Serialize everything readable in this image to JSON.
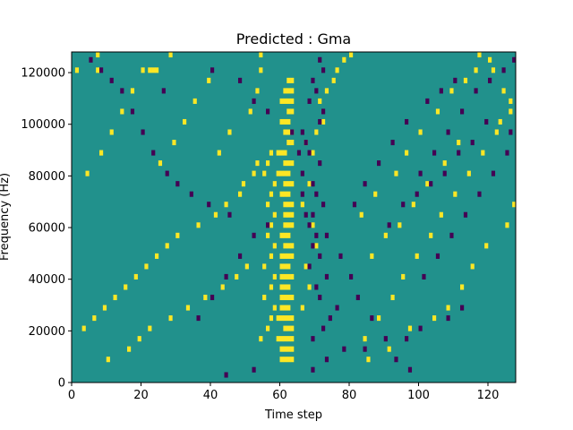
{
  "chart_data": {
    "type": "heatmap",
    "title": "Predicted : Gma",
    "xlabel": "Time step",
    "ylabel": "Frequency (Hz)",
    "xlim": [
      0,
      128
    ],
    "ylim": [
      0,
      128000
    ],
    "x_ticks": [
      0,
      20,
      40,
      60,
      80,
      100,
      120
    ],
    "y_ticks": [
      0,
      20000,
      40000,
      60000,
      80000,
      100000,
      120000
    ],
    "x_tick_labels": [
      "0",
      "20",
      "40",
      "60",
      "80",
      "100",
      "120"
    ],
    "y_tick_labels": [
      "0",
      "20000",
      "40000",
      "60000",
      "80000",
      "100000",
      "120000"
    ],
    "n_time_steps": 128,
    "n_frequency_bins": 64,
    "colormap": "viridis",
    "colors": {
      "background": "#21918c",
      "high": "#fde725",
      "low": "#440154"
    },
    "value_levels": [
      -1,
      0,
      1
    ],
    "background_value": 0,
    "high_cells": [
      [
        7,
        63
      ],
      [
        28,
        63
      ],
      [
        54,
        63
      ],
      [
        1,
        60
      ],
      [
        7,
        60
      ],
      [
        20,
        60
      ],
      [
        22,
        60
      ],
      [
        23,
        60
      ],
      [
        24,
        60
      ],
      [
        54,
        60
      ],
      [
        60,
        4
      ],
      [
        61,
        4
      ],
      [
        62,
        4
      ],
      [
        63,
        4
      ],
      [
        60,
        6
      ],
      [
        61,
        6
      ],
      [
        62,
        6
      ],
      [
        63,
        6
      ],
      [
        59,
        8
      ],
      [
        60,
        8
      ],
      [
        61,
        8
      ],
      [
        62,
        8
      ],
      [
        63,
        8
      ],
      [
        61,
        10
      ],
      [
        62,
        10
      ],
      [
        63,
        10
      ],
      [
        59,
        12
      ],
      [
        60,
        12
      ],
      [
        61,
        12
      ],
      [
        62,
        12
      ],
      [
        63,
        12
      ],
      [
        60,
        14
      ],
      [
        61,
        14
      ],
      [
        62,
        14
      ],
      [
        60,
        16
      ],
      [
        61,
        16
      ],
      [
        62,
        16
      ],
      [
        63,
        16
      ],
      [
        60,
        18
      ],
      [
        61,
        18
      ],
      [
        62,
        18
      ],
      [
        60,
        20
      ],
      [
        61,
        20
      ],
      [
        62,
        20
      ],
      [
        63,
        20
      ],
      [
        60,
        22
      ],
      [
        61,
        22
      ],
      [
        62,
        22
      ],
      [
        60,
        24
      ],
      [
        61,
        24
      ],
      [
        62,
        24
      ],
      [
        63,
        24
      ],
      [
        61,
        26
      ],
      [
        62,
        26
      ],
      [
        63,
        26
      ],
      [
        60,
        28
      ],
      [
        61,
        28
      ],
      [
        62,
        28
      ],
      [
        61,
        30
      ],
      [
        62,
        30
      ],
      [
        63,
        30
      ],
      [
        61,
        32
      ],
      [
        62,
        32
      ],
      [
        63,
        32
      ],
      [
        61,
        34
      ],
      [
        62,
        34
      ],
      [
        63,
        34
      ],
      [
        60,
        36
      ],
      [
        61,
        36
      ],
      [
        62,
        36
      ],
      [
        61,
        38
      ],
      [
        62,
        38
      ],
      [
        63,
        38
      ],
      [
        59,
        40
      ],
      [
        60,
        40
      ],
      [
        61,
        40
      ],
      [
        62,
        40
      ],
      [
        61,
        42
      ],
      [
        62,
        42
      ],
      [
        63,
        42
      ],
      [
        59,
        44
      ],
      [
        60,
        44
      ],
      [
        61,
        44
      ],
      [
        62,
        46
      ],
      [
        63,
        46
      ],
      [
        61,
        48
      ],
      [
        62,
        48
      ],
      [
        63,
        48
      ],
      [
        60,
        50
      ],
      [
        61,
        50
      ],
      [
        62,
        50
      ],
      [
        62,
        52
      ],
      [
        63,
        52
      ],
      [
        60,
        54
      ],
      [
        61,
        54
      ],
      [
        62,
        54
      ],
      [
        63,
        54
      ],
      [
        61,
        56
      ],
      [
        62,
        56
      ],
      [
        63,
        56
      ],
      [
        62,
        58
      ],
      [
        63,
        58
      ],
      [
        54,
        8
      ],
      [
        56,
        10
      ],
      [
        57,
        12
      ],
      [
        58,
        14
      ],
      [
        55,
        16
      ],
      [
        57,
        18
      ],
      [
        58,
        20
      ],
      [
        55,
        22
      ],
      [
        57,
        24
      ],
      [
        58,
        26
      ],
      [
        56,
        28
      ],
      [
        57,
        30
      ],
      [
        58,
        32
      ],
      [
        56,
        34
      ],
      [
        57,
        36
      ],
      [
        58,
        38
      ],
      [
        55,
        40
      ],
      [
        56,
        42
      ],
      [
        57,
        44
      ],
      [
        10,
        4
      ],
      [
        16,
        6
      ],
      [
        19,
        8
      ],
      [
        22,
        10
      ],
      [
        28,
        12
      ],
      [
        33,
        14
      ],
      [
        38,
        16
      ],
      [
        43,
        18
      ],
      [
        47,
        20
      ],
      [
        50,
        22
      ],
      [
        3,
        10
      ],
      [
        6,
        12
      ],
      [
        9,
        14
      ],
      [
        12,
        16
      ],
      [
        15,
        18
      ],
      [
        18,
        20
      ],
      [
        21,
        22
      ],
      [
        24,
        24
      ],
      [
        27,
        26
      ],
      [
        30,
        28
      ],
      [
        36,
        30
      ],
      [
        41,
        32
      ],
      [
        44,
        34
      ],
      [
        48,
        36
      ],
      [
        49,
        38
      ],
      [
        52,
        40
      ],
      [
        53,
        42
      ],
      [
        66,
        14
      ],
      [
        68,
        18
      ],
      [
        67,
        22
      ],
      [
        70,
        26
      ],
      [
        69,
        30
      ],
      [
        66,
        34
      ],
      [
        68,
        38
      ],
      [
        69,
        44
      ],
      [
        67,
        46
      ],
      [
        70,
        48
      ],
      [
        72,
        50
      ],
      [
        71,
        54
      ],
      [
        73,
        56
      ],
      [
        75,
        58
      ],
      [
        76,
        60
      ],
      [
        78,
        62
      ],
      [
        80,
        63
      ],
      [
        84,
        8
      ],
      [
        88,
        12
      ],
      [
        92,
        16
      ],
      [
        95,
        20
      ],
      [
        99,
        24
      ],
      [
        103,
        28
      ],
      [
        106,
        32
      ],
      [
        110,
        36
      ],
      [
        114,
        40
      ],
      [
        118,
        44
      ],
      [
        122,
        48
      ],
      [
        126,
        52
      ],
      [
        124,
        56
      ],
      [
        121,
        60
      ],
      [
        117,
        63
      ],
      [
        85,
        4
      ],
      [
        91,
        6
      ],
      [
        97,
        10
      ],
      [
        104,
        12
      ],
      [
        108,
        14
      ],
      [
        112,
        18
      ],
      [
        115,
        22
      ],
      [
        119,
        26
      ],
      [
        125,
        30
      ],
      [
        127,
        34
      ],
      [
        83,
        32
      ],
      [
        87,
        36
      ],
      [
        93,
        40
      ],
      [
        96,
        44
      ],
      [
        100,
        48
      ],
      [
        105,
        52
      ],
      [
        109,
        56
      ],
      [
        113,
        58
      ],
      [
        116,
        60
      ],
      [
        120,
        62
      ],
      [
        86,
        24
      ],
      [
        90,
        28
      ],
      [
        94,
        30
      ],
      [
        98,
        34
      ],
      [
        102,
        38
      ],
      [
        107,
        42
      ],
      [
        111,
        46
      ],
      [
        123,
        50
      ],
      [
        126,
        54
      ],
      [
        4,
        40
      ],
      [
        8,
        44
      ],
      [
        11,
        48
      ],
      [
        14,
        52
      ],
      [
        17,
        56
      ],
      [
        25,
        42
      ],
      [
        29,
        46
      ],
      [
        32,
        50
      ],
      [
        35,
        54
      ],
      [
        39,
        58
      ],
      [
        42,
        44
      ],
      [
        45,
        48
      ],
      [
        51,
        52
      ],
      [
        53,
        56
      ]
    ],
    "low_cells": [
      [
        44,
        1
      ],
      [
        52,
        2
      ],
      [
        69,
        2
      ],
      [
        73,
        4
      ],
      [
        78,
        6
      ],
      [
        84,
        6
      ],
      [
        96,
        8
      ],
      [
        100,
        10
      ],
      [
        108,
        12
      ],
      [
        112,
        14
      ],
      [
        69,
        8
      ],
      [
        72,
        10
      ],
      [
        74,
        12
      ],
      [
        76,
        14
      ],
      [
        71,
        16
      ],
      [
        70,
        18
      ],
      [
        73,
        20
      ],
      [
        68,
        22
      ],
      [
        71,
        24
      ],
      [
        69,
        26
      ],
      [
        70,
        28
      ],
      [
        68,
        30
      ],
      [
        67,
        32
      ],
      [
        72,
        34
      ],
      [
        70,
        36
      ],
      [
        69,
        38
      ],
      [
        66,
        40
      ],
      [
        71,
        42
      ],
      [
        68,
        44
      ],
      [
        67,
        46
      ],
      [
        66,
        48
      ],
      [
        71,
        50
      ],
      [
        72,
        52
      ],
      [
        68,
        54
      ],
      [
        70,
        56
      ],
      [
        69,
        58
      ],
      [
        72,
        60
      ],
      [
        71,
        62
      ],
      [
        26,
        56
      ],
      [
        40,
        60
      ],
      [
        48,
        58
      ],
      [
        52,
        54
      ],
      [
        56,
        52
      ],
      [
        63,
        48
      ],
      [
        65,
        44
      ],
      [
        66,
        36
      ],
      [
        69,
        32
      ],
      [
        73,
        28
      ],
      [
        77,
        24
      ],
      [
        80,
        20
      ],
      [
        82,
        16
      ],
      [
        86,
        12
      ],
      [
        90,
        8
      ],
      [
        93,
        4
      ],
      [
        97,
        2
      ],
      [
        36,
        12
      ],
      [
        40,
        16
      ],
      [
        44,
        20
      ],
      [
        48,
        24
      ],
      [
        52,
        28
      ],
      [
        56,
        30
      ],
      [
        45,
        32
      ],
      [
        39,
        34
      ],
      [
        34,
        36
      ],
      [
        30,
        38
      ],
      [
        27,
        40
      ],
      [
        23,
        44
      ],
      [
        20,
        48
      ],
      [
        17,
        52
      ],
      [
        14,
        56
      ],
      [
        11,
        58
      ],
      [
        8,
        60
      ],
      [
        5,
        62
      ],
      [
        100,
        40
      ],
      [
        104,
        44
      ],
      [
        108,
        48
      ],
      [
        112,
        52
      ],
      [
        116,
        56
      ],
      [
        120,
        58
      ],
      [
        124,
        60
      ],
      [
        127,
        62
      ],
      [
        101,
        20
      ],
      [
        105,
        24
      ],
      [
        109,
        28
      ],
      [
        113,
        32
      ],
      [
        117,
        36
      ],
      [
        121,
        40
      ],
      [
        125,
        44
      ],
      [
        126,
        48
      ],
      [
        91,
        30
      ],
      [
        95,
        34
      ],
      [
        99,
        36
      ],
      [
        103,
        38
      ],
      [
        107,
        40
      ],
      [
        111,
        44
      ],
      [
        115,
        46
      ],
      [
        119,
        50
      ],
      [
        81,
        34
      ],
      [
        84,
        38
      ],
      [
        88,
        42
      ],
      [
        92,
        46
      ],
      [
        96,
        50
      ],
      [
        102,
        54
      ],
      [
        106,
        56
      ],
      [
        110,
        58
      ]
    ]
  }
}
